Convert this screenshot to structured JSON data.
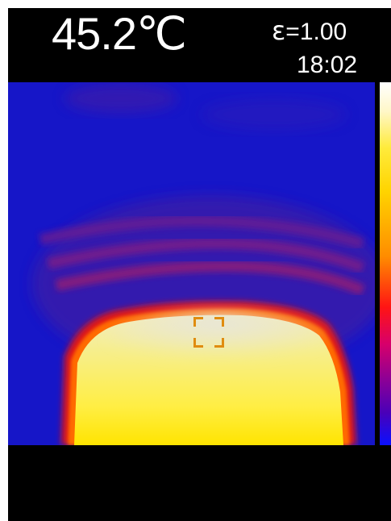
{
  "header": {
    "temperature": "45.2℃",
    "emissivity_symbol": "ε",
    "emissivity_value": "=1.00",
    "time": "18:02"
  },
  "thermal_view": {
    "palette": [
      "#1616c8",
      "#3a1aa8",
      "#8e1a78",
      "#ff1a1a",
      "#ff6a00",
      "#ffd200",
      "#ffee44",
      "#f4f0c0"
    ],
    "background_color": "#1616c8",
    "hot_color": "#ffe600",
    "crosshair_color": "#e08c10"
  },
  "scale_bar": {
    "top_color": "#ffffff",
    "bottom_color": "#0a10ff"
  },
  "icons": {
    "crosshair": "spot-crosshair-icon"
  }
}
